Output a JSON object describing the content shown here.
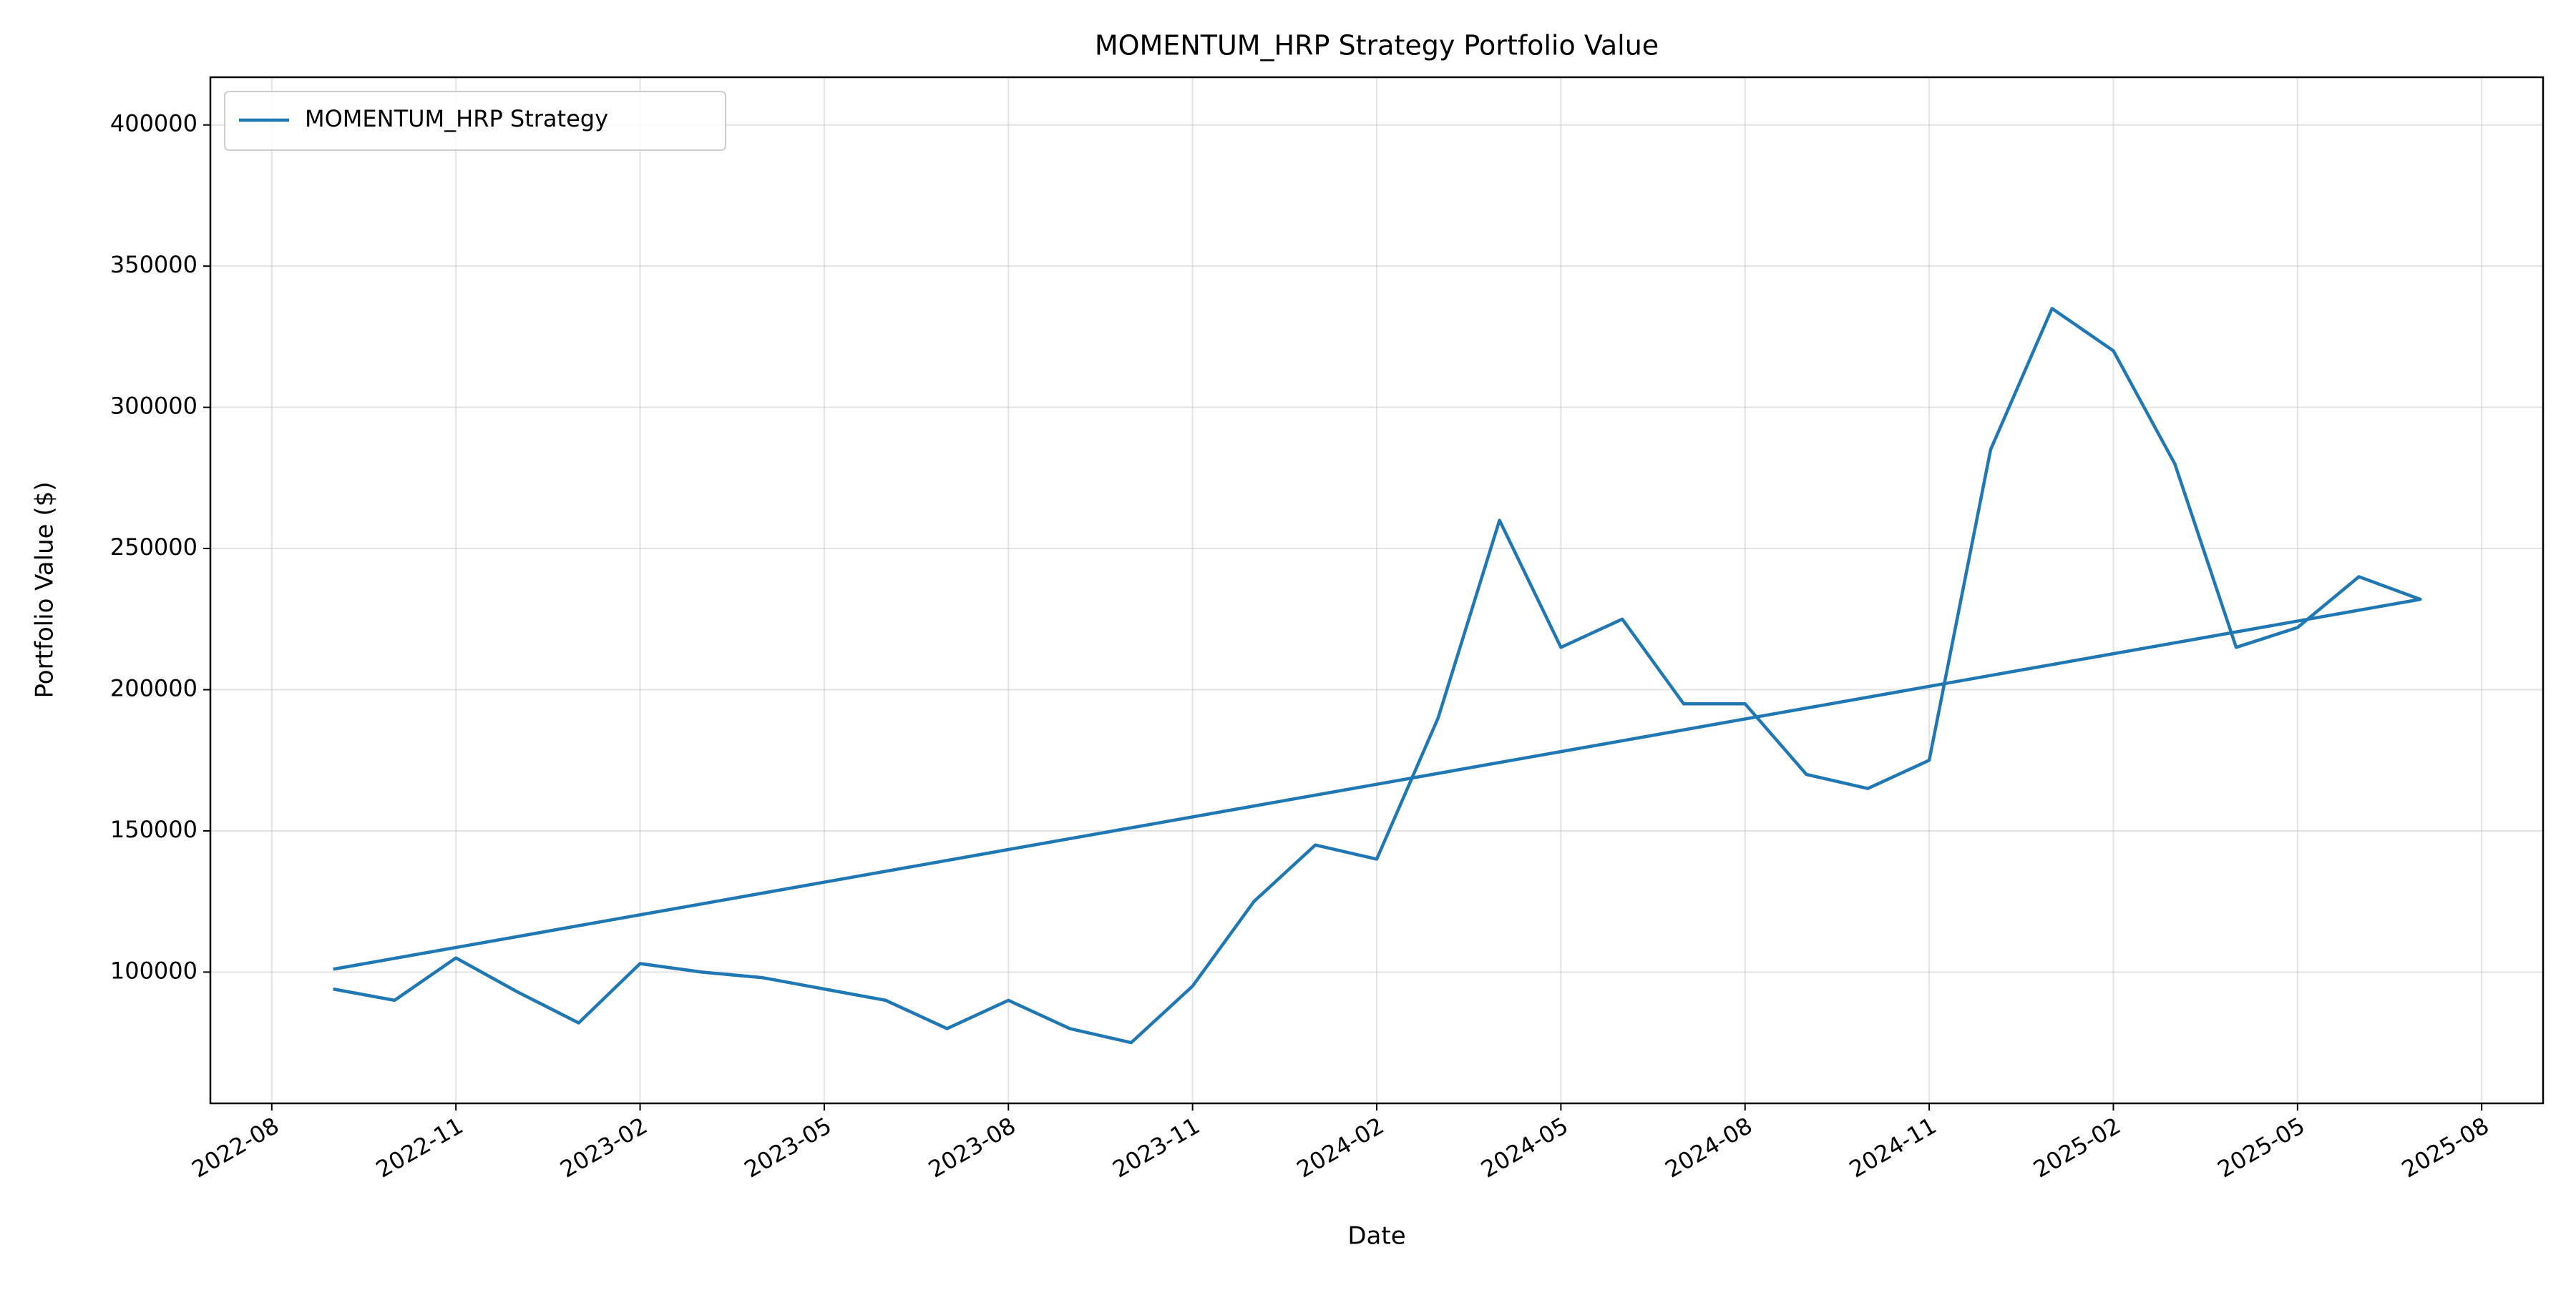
{
  "chart_data": {
    "type": "line",
    "title": "MOMENTUM_HRP Strategy Portfolio Value",
    "x_label": "Date",
    "y_label": "Portfolio Value ($)",
    "x": [
      "2022-09",
      "2022-10",
      "2022-11",
      "2022-12",
      "2023-01",
      "2023-02",
      "2023-03",
      "2023-04",
      "2023-05",
      "2023-06",
      "2023-07",
      "2023-08",
      "2023-09",
      "2023-10",
      "2023-11",
      "2023-12",
      "2024-01",
      "2024-02",
      "2024-03",
      "2024-04",
      "2024-05",
      "2024-06",
      "2024-07",
      "2024-08",
      "2024-09",
      "2024-10",
      "2024-11",
      "2024-12",
      "2025-01",
      "2025-02",
      "2025-03",
      "2025-04",
      "2025-05",
      "2025-06",
      "2025-07",
      "2022-09"
    ],
    "series": [
      {
        "name": "MOMENTUM_HRP Strategy",
        "color": "#1f77b4",
        "values": [
          94000,
          90000,
          105000,
          93000,
          82000,
          103000,
          100000,
          98000,
          94000,
          90000,
          80000,
          90000,
          80000,
          75000,
          95000,
          125000,
          145000,
          140000,
          190000,
          260000,
          215000,
          225000,
          195000,
          195000,
          170000,
          165000,
          175000,
          285000,
          335000,
          320000,
          280000,
          215000,
          222000,
          240000,
          232000,
          101000
        ]
      }
    ],
    "xlim": [
      "2022-07",
      "2025-09"
    ],
    "xticks": [
      "2022-08",
      "2022-11",
      "2023-02",
      "2023-05",
      "2023-08",
      "2023-11",
      "2024-02",
      "2024-05",
      "2024-08",
      "2024-11",
      "2025-02",
      "2025-05",
      "2025-08"
    ],
    "ylim": [
      53500,
      416900
    ],
    "yticks": [
      100000,
      150000,
      200000,
      250000,
      300000,
      350000,
      400000
    ],
    "grid": true,
    "legend": "upper left"
  }
}
